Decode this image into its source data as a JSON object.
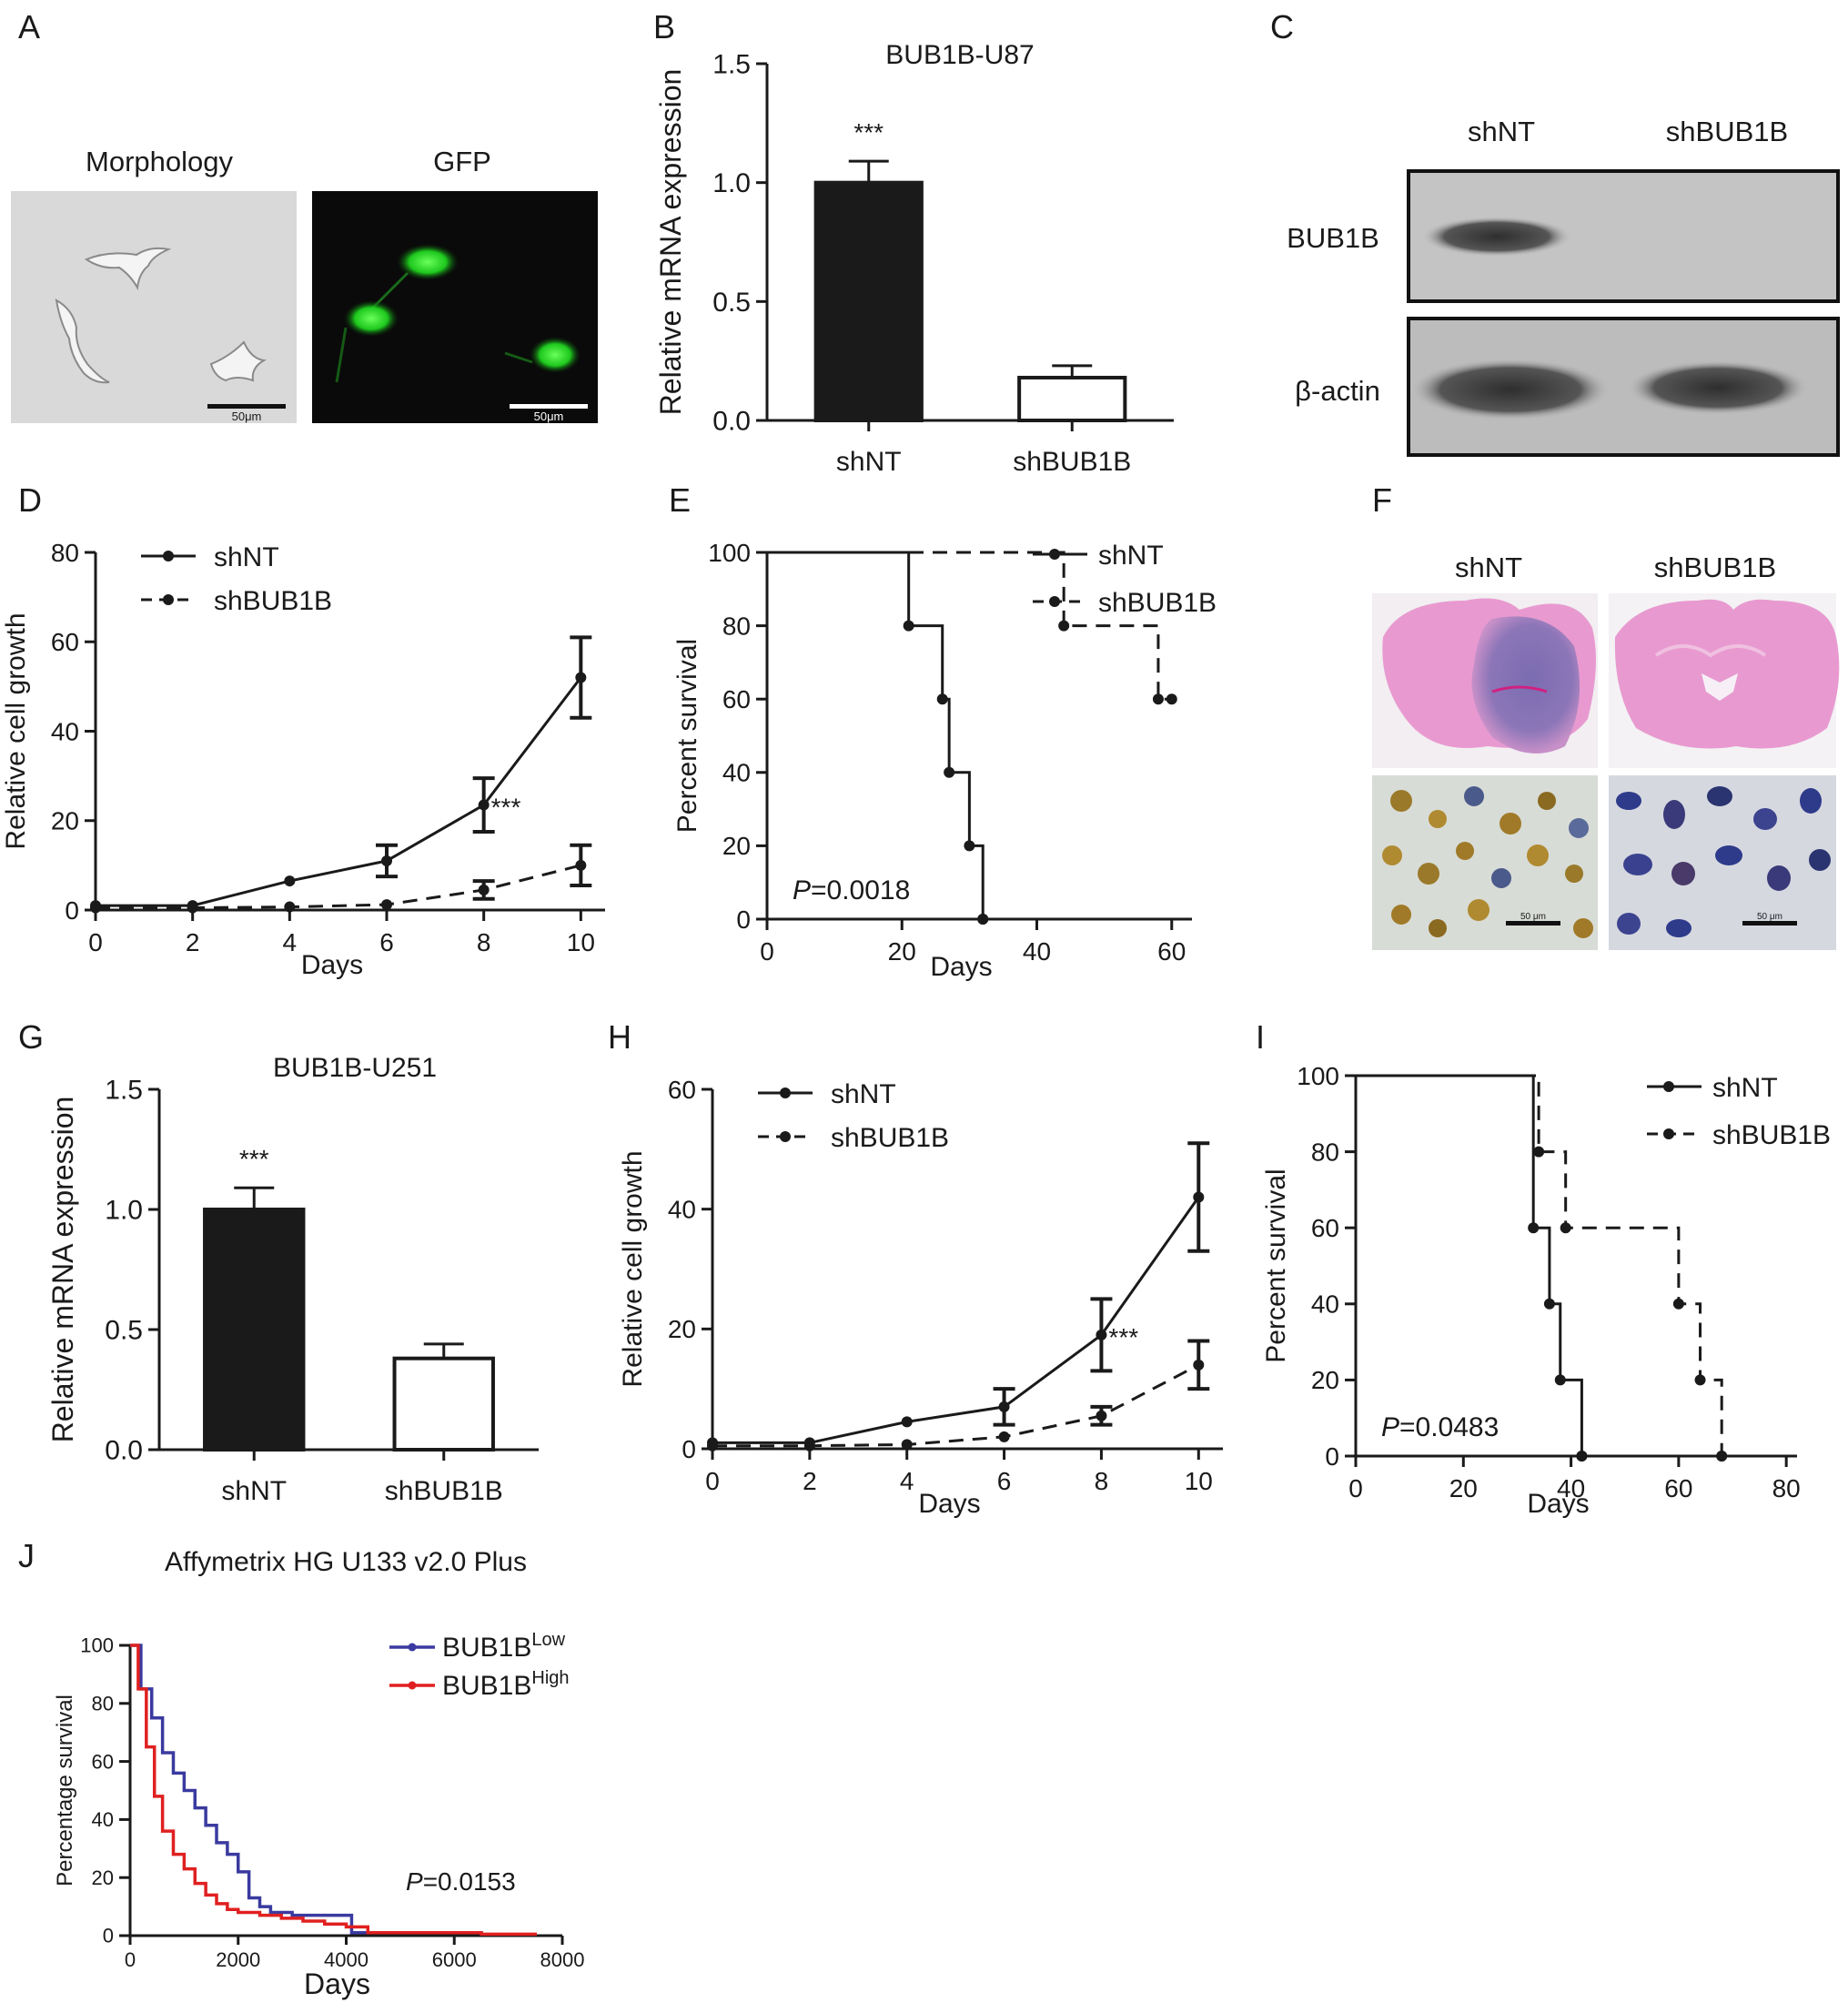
{
  "panel_letters": [
    "A",
    "B",
    "C",
    "D",
    "E",
    "F",
    "G",
    "H",
    "I",
    "J"
  ],
  "panel_a": {
    "labels": [
      "Morphology",
      "GFP"
    ],
    "scalebar": "50μm"
  },
  "panel_c": {
    "lanes": [
      "shNT",
      "shBUB1B"
    ],
    "rows": [
      "BUB1B",
      "β-actin"
    ]
  },
  "panel_f": {
    "labels": [
      "shNT",
      "shBUB1B"
    ],
    "scalebar": "50 μm"
  },
  "chart_data": [
    {
      "panel": "B",
      "type": "bar",
      "title": "BUB1B-U87",
      "ylabel": "Relative mRNA expression",
      "xlabel": "",
      "categories": [
        "shNT",
        "shBUB1B"
      ],
      "values": [
        1.0,
        0.18
      ],
      "errors": [
        0.09,
        0.05
      ],
      "fills": [
        "#1a1a1a",
        "#ffffff"
      ],
      "ylim": [
        0,
        1.5
      ],
      "yticks": [
        "0.0",
        "0.5",
        "1.0",
        "1.5"
      ],
      "annotations": [
        "***"
      ]
    },
    {
      "panel": "D",
      "type": "line",
      "title": "",
      "xlabel": "Days",
      "ylabel": "Relative cell growth",
      "x": [
        0,
        2,
        4,
        6,
        8,
        10
      ],
      "xlim": [
        0,
        10.5
      ],
      "ylim": [
        0,
        80
      ],
      "xticks": [
        "0",
        "2",
        "4",
        "6",
        "8",
        "10"
      ],
      "yticks": [
        "0",
        "20",
        "40",
        "60",
        "80"
      ],
      "series": [
        {
          "name": "shNT",
          "style": "solid",
          "values": [
            1,
            1,
            6.5,
            11,
            23.5,
            52
          ],
          "errors": [
            0,
            0,
            0,
            3.5,
            6,
            9
          ]
        },
        {
          "name": "shBUB1B",
          "style": "dashed",
          "values": [
            0.5,
            0.5,
            0.7,
            1.2,
            4.5,
            10
          ],
          "errors": [
            0,
            0,
            0,
            0,
            2,
            4.5
          ]
        }
      ],
      "annotations": [
        "***"
      ],
      "legend": "top-left"
    },
    {
      "panel": "E",
      "type": "line",
      "title": "",
      "xlabel": "Days",
      "ylabel": "Percent   survival",
      "xlim": [
        0,
        63
      ],
      "ylim": [
        0,
        100
      ],
      "xticks": [
        "0",
        "20",
        "40",
        "60"
      ],
      "yticks": [
        "0",
        "20",
        "40",
        "60",
        "80",
        "100"
      ],
      "series": [
        {
          "name": "shNT",
          "style": "solid",
          "steps": [
            [
              0,
              100
            ],
            [
              21,
              100
            ],
            [
              21,
              80
            ],
            [
              26,
              80
            ],
            [
              26,
              60
            ],
            [
              27,
              60
            ],
            [
              27,
              40
            ],
            [
              30,
              40
            ],
            [
              30,
              20
            ],
            [
              32,
              20
            ],
            [
              32,
              0
            ]
          ]
        },
        {
          "name": "shBUB1B",
          "style": "dashed",
          "steps": [
            [
              0,
              100
            ],
            [
              44,
              100
            ],
            [
              44,
              80
            ],
            [
              58,
              80
            ],
            [
              58,
              60
            ],
            [
              60,
              60
            ]
          ]
        }
      ],
      "annotations": [
        "P=0.0018"
      ],
      "legend": "top-right"
    },
    {
      "panel": "G",
      "type": "bar",
      "title": "BUB1B-U251",
      "ylabel": "Relative mRNA expression",
      "xlabel": "",
      "categories": [
        "shNT",
        "shBUB1B"
      ],
      "values": [
        1.0,
        0.38
      ],
      "errors": [
        0.09,
        0.06
      ],
      "fills": [
        "#1a1a1a",
        "#ffffff"
      ],
      "ylim": [
        0,
        1.5
      ],
      "yticks": [
        "0.0",
        "0.5",
        "1.0",
        "1.5"
      ],
      "annotations": [
        "***"
      ]
    },
    {
      "panel": "H",
      "type": "line",
      "title": "",
      "xlabel": "Days",
      "ylabel": "Relative cell growth",
      "x": [
        0,
        2,
        4,
        6,
        8,
        10
      ],
      "xlim": [
        0,
        10.5
      ],
      "ylim": [
        0,
        60
      ],
      "xticks": [
        "0",
        "2",
        "4",
        "6",
        "8",
        "10"
      ],
      "yticks": [
        "0",
        "20",
        "40",
        "60"
      ],
      "series": [
        {
          "name": "shNT",
          "style": "solid",
          "values": [
            1,
            1,
            4.5,
            7,
            19,
            42
          ],
          "errors": [
            0,
            0,
            0,
            3,
            6,
            9
          ]
        },
        {
          "name": "shBUB1B",
          "style": "dashed",
          "values": [
            0.5,
            0.5,
            0.7,
            2,
            5.5,
            14
          ],
          "errors": [
            0,
            0,
            0,
            0,
            1.5,
            4
          ]
        }
      ],
      "annotations": [
        "***"
      ],
      "legend": "top-left"
    },
    {
      "panel": "I",
      "type": "line",
      "title": "",
      "xlabel": "Days",
      "ylabel": "Percent   survival",
      "xlim": [
        0,
        82
      ],
      "ylim": [
        0,
        100
      ],
      "xticks": [
        "0",
        "20",
        "40",
        "60",
        "80"
      ],
      "yticks": [
        "0",
        "20",
        "40",
        "60",
        "80",
        "100"
      ],
      "series": [
        {
          "name": "shNT",
          "style": "solid",
          "steps": [
            [
              0,
              100
            ],
            [
              33,
              100
            ],
            [
              33,
              60
            ],
            [
              36,
              60
            ],
            [
              36,
              40
            ],
            [
              38,
              40
            ],
            [
              38,
              20
            ],
            [
              42,
              20
            ],
            [
              42,
              0
            ]
          ]
        },
        {
          "name": "shBUB1B",
          "style": "dashed",
          "steps": [
            [
              0,
              100
            ],
            [
              34,
              100
            ],
            [
              34,
              80
            ],
            [
              39,
              80
            ],
            [
              39,
              60
            ],
            [
              60,
              60
            ],
            [
              60,
              40
            ],
            [
              64,
              40
            ],
            [
              64,
              20
            ],
            [
              68,
              20
            ],
            [
              68,
              0
            ]
          ]
        }
      ],
      "annotations": [
        "P=0.0483"
      ],
      "legend": "top-right"
    },
    {
      "panel": "J",
      "type": "line",
      "title": "Affymetrix HG U133 v2.0 Plus",
      "xlabel": "Days",
      "ylabel": "Percentage survival",
      "xlim": [
        0,
        8000
      ],
      "ylim": [
        0,
        100
      ],
      "xticks": [
        "0",
        "2000",
        "4000",
        "6000",
        "8000"
      ],
      "yticks": [
        "0",
        "20",
        "40",
        "60",
        "80",
        "100"
      ],
      "series": [
        {
          "name": "BUB1B",
          "superscript": "Low",
          "color": "#3a3aa0",
          "points": [
            [
              0,
              100
            ],
            [
              200,
              85
            ],
            [
              400,
              75
            ],
            [
              600,
              63
            ],
            [
              800,
              56
            ],
            [
              1000,
              50
            ],
            [
              1200,
              44
            ],
            [
              1400,
              38
            ],
            [
              1600,
              32
            ],
            [
              1800,
              28
            ],
            [
              2000,
              22
            ],
            [
              2200,
              13
            ],
            [
              2400,
              10
            ],
            [
              2600,
              8
            ],
            [
              3000,
              7
            ],
            [
              3500,
              7
            ],
            [
              4000,
              7
            ],
            [
              4100,
              1
            ],
            [
              5000,
              1
            ],
            [
              6500,
              0.5
            ]
          ]
        },
        {
          "name": "BUB1B",
          "superscript": "High",
          "color": "#e02020",
          "points": [
            [
              0,
              100
            ],
            [
              150,
              85
            ],
            [
              300,
              65
            ],
            [
              450,
              48
            ],
            [
              600,
              36
            ],
            [
              800,
              28
            ],
            [
              1000,
              23
            ],
            [
              1200,
              18
            ],
            [
              1400,
              14
            ],
            [
              1600,
              11
            ],
            [
              1800,
              9
            ],
            [
              2000,
              8
            ],
            [
              2400,
              7
            ],
            [
              2800,
              6
            ],
            [
              3200,
              5
            ],
            [
              3600,
              4
            ],
            [
              4000,
              3
            ],
            [
              4400,
              1
            ],
            [
              5500,
              1
            ],
            [
              6500,
              0.5
            ],
            [
              7500,
              0
            ]
          ]
        }
      ],
      "annotations": [
        "P=0.0153"
      ],
      "legend": "top-right"
    }
  ]
}
